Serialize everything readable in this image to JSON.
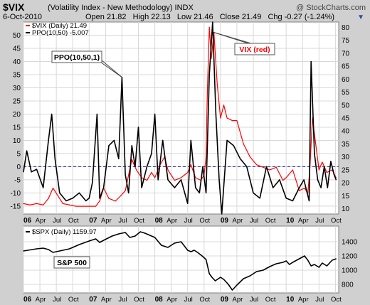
{
  "header": {
    "ticker": "$VIX",
    "description": "(Volatility Index - New Methodology)",
    "exchange": "INDX",
    "watermark": "@ StockCharts.com",
    "date": "6-Oct-2010",
    "quote": {
      "open_label": "Open",
      "open": "21.82",
      "high_label": "High",
      "high": "22.13",
      "low_label": "Low",
      "low": "21.46",
      "close_label": "Close",
      "close": "21.49",
      "chg_label": "Chg",
      "chg": "-0.27 (-1.24%)"
    },
    "chg_arrow": "▼"
  },
  "colors": {
    "vix": "#ff0000",
    "ppo": "#000000",
    "zero_line": "#1f2ca8",
    "panel_bg": "#ffffff",
    "frame_bg": "#d0d0d0"
  },
  "chart_data": [
    {
      "type": "line",
      "legend": [
        {
          "name": "$VIX (Daily) 21.49",
          "color": "#ff0000"
        },
        {
          "name": "PPO(10,50) -5.007",
          "color": "#000000"
        }
      ],
      "legend_placement": "top-left",
      "left_axis": {
        "ticks": [
          -15,
          -10,
          -5,
          0,
          5,
          10,
          15,
          20,
          25,
          30,
          35,
          40,
          45,
          50
        ],
        "labels": [
          "-15",
          "-10",
          "-5",
          "0",
          "5",
          "10",
          "15",
          "20",
          "25",
          "30",
          "35",
          "40",
          "45",
          "50"
        ],
        "range": [
          -18,
          55
        ]
      },
      "right_axis": {
        "ticks": [
          10,
          15,
          20,
          25,
          30,
          35,
          40,
          45,
          50,
          55,
          60,
          65,
          70,
          75,
          80
        ],
        "labels": [
          "10",
          "15",
          "20",
          "25",
          "30",
          "35",
          "40",
          "45",
          "50",
          "55",
          "60",
          "65",
          "70",
          "75",
          "80"
        ],
        "range": [
          8,
          82
        ]
      },
      "x_axis": {
        "labels": [
          "06",
          "Apr",
          "Jul",
          "Oct",
          "07",
          "Apr",
          "Jul",
          "Oct",
          "08",
          "Apr",
          "Jul",
          "Oct",
          "09",
          "Apr",
          "Jul",
          "Oct",
          "10",
          "Apr",
          "Jul",
          "Oct"
        ],
        "range": [
          2006.0,
          2010.8
        ]
      },
      "zero_line": 0,
      "grid": true,
      "series": [
        {
          "name": "$VIX (Daily)",
          "axis": "right",
          "color": "#ff0000",
          "x": [
            2006.0,
            2006.1,
            2006.2,
            2006.3,
            2006.38,
            2006.45,
            2006.5,
            2006.6,
            2006.7,
            2006.8,
            2006.9,
            2007.0,
            2007.1,
            2007.16,
            2007.22,
            2007.3,
            2007.4,
            2007.48,
            2007.55,
            2007.6,
            2007.65,
            2007.72,
            2007.8,
            2007.88,
            2007.95,
            2008.0,
            2008.08,
            2008.15,
            2008.2,
            2008.3,
            2008.4,
            2008.5,
            2008.55,
            2008.62,
            2008.7,
            2008.75,
            2008.78,
            2008.8,
            2008.83,
            2008.86,
            2008.9,
            2008.95,
            2009.0,
            2009.05,
            2009.1,
            2009.18,
            2009.25,
            2009.35,
            2009.45,
            2009.55,
            2009.65,
            2009.75,
            2009.85,
            2009.95,
            2010.0,
            2010.1,
            2010.2,
            2010.28,
            2010.33,
            2010.36,
            2010.4,
            2010.45,
            2010.5,
            2010.55,
            2010.62,
            2010.7,
            2010.76
          ],
          "y": [
            12,
            11.5,
            12,
            11.5,
            14,
            18,
            16,
            12,
            11.5,
            11,
            11,
            11,
            11,
            13,
            18,
            14,
            13,
            15,
            17,
            23,
            29,
            25,
            22,
            21,
            24,
            22,
            27,
            30,
            25,
            21,
            22,
            24,
            27,
            22,
            21,
            23,
            30,
            55,
            80,
            68,
            78,
            58,
            45,
            50,
            45,
            44,
            44,
            35,
            30,
            27,
            26,
            25,
            26,
            21,
            22,
            25,
            17,
            18,
            16,
            25,
            45,
            35,
            25,
            28,
            24,
            25,
            22
          ]
        },
        {
          "name": "PPO(10,50)",
          "axis": "left",
          "color": "#000000",
          "x": [
            2006.0,
            2006.05,
            2006.12,
            2006.2,
            2006.3,
            2006.38,
            2006.43,
            2006.48,
            2006.55,
            2006.65,
            2006.75,
            2006.85,
            2006.95,
            2007.0,
            2007.05,
            2007.12,
            2007.16,
            2007.22,
            2007.3,
            2007.38,
            2007.45,
            2007.5,
            2007.55,
            2007.6,
            2007.65,
            2007.7,
            2007.75,
            2007.8,
            2007.88,
            2007.95,
            2008.0,
            2008.05,
            2008.12,
            2008.2,
            2008.3,
            2008.4,
            2008.5,
            2008.55,
            2008.62,
            2008.68,
            2008.73,
            2008.78,
            2008.83,
            2008.88,
            2008.93,
            2008.98,
            2009.02,
            2009.1,
            2009.2,
            2009.3,
            2009.4,
            2009.5,
            2009.6,
            2009.7,
            2009.8,
            2009.9,
            2010.0,
            2010.1,
            2010.2,
            2010.27,
            2010.32,
            2010.35,
            2010.38,
            2010.43,
            2010.48,
            2010.53,
            2010.58,
            2010.63,
            2010.68,
            2010.73,
            2010.76
          ],
          "y": [
            -2,
            6,
            -2,
            -1,
            -8,
            10,
            20,
            3,
            -10,
            -13,
            -12,
            -10,
            -13,
            -12,
            -6,
            20,
            -12,
            -8,
            8,
            10,
            3,
            34,
            -3,
            -10,
            8,
            0,
            15,
            -8,
            0,
            5,
            20,
            -5,
            10,
            -5,
            -8,
            -5,
            -14,
            10,
            -8,
            -10,
            0,
            -10,
            35,
            55,
            20,
            -5,
            -18,
            10,
            8,
            3,
            0,
            -10,
            -12,
            0,
            -8,
            -5,
            -12,
            -13,
            -8,
            -5,
            -10,
            -13,
            40,
            5,
            -5,
            -8,
            0,
            -8,
            2,
            -3,
            -5
          ]
        }
      ],
      "annotations": [
        {
          "text": "PPO(10,50,1)",
          "target_x": 2007.5,
          "target_y": 34
        },
        {
          "text": "VIX (red)",
          "target_x": 2008.9,
          "target_y": 78
        }
      ]
    },
    {
      "type": "line",
      "legend": [
        {
          "name": "$SPX (Daily) 1159.97",
          "color": "#000000"
        }
      ],
      "legend_placement": "top-left",
      "right_axis": {
        "ticks": [
          800,
          1000,
          1200,
          1400
        ],
        "labels": [
          "800",
          "1000",
          "1200",
          "1400"
        ],
        "range": [
          680,
          1620
        ]
      },
      "x_axis": {
        "labels": [
          "06",
          "Apr",
          "Jul",
          "Oct",
          "07",
          "Apr",
          "Jul",
          "Oct",
          "08",
          "Apr",
          "Jul",
          "Oct",
          "09",
          "Apr",
          "Jul",
          "Oct",
          "10",
          "Apr",
          "Jul",
          "Oct"
        ],
        "range": [
          2006.0,
          2010.8
        ]
      },
      "grid": true,
      "series": [
        {
          "name": "$SPX (Daily)",
          "color": "#000000",
          "x": [
            2006.0,
            2006.1,
            2006.2,
            2006.3,
            2006.38,
            2006.45,
            2006.55,
            2006.7,
            2006.85,
            2007.0,
            2007.1,
            2007.16,
            2007.22,
            2007.35,
            2007.45,
            2007.55,
            2007.62,
            2007.7,
            2007.78,
            2007.85,
            2007.95,
            2008.0,
            2008.1,
            2008.2,
            2008.3,
            2008.4,
            2008.5,
            2008.55,
            2008.6,
            2008.65,
            2008.72,
            2008.78,
            2008.83,
            2008.87,
            2008.92,
            2009.0,
            2009.05,
            2009.12,
            2009.18,
            2009.25,
            2009.35,
            2009.45,
            2009.55,
            2009.65,
            2009.75,
            2009.85,
            2009.95,
            2010.0,
            2010.05,
            2010.1,
            2010.2,
            2010.28,
            2010.33,
            2010.38,
            2010.43,
            2010.5,
            2010.55,
            2010.62,
            2010.7,
            2010.76
          ],
          "y": [
            1270,
            1285,
            1300,
            1310,
            1290,
            1250,
            1270,
            1300,
            1360,
            1410,
            1440,
            1390,
            1420,
            1480,
            1510,
            1530,
            1460,
            1480,
            1540,
            1520,
            1480,
            1460,
            1350,
            1320,
            1380,
            1400,
            1280,
            1260,
            1280,
            1250,
            1200,
            1150,
            950,
            900,
            850,
            900,
            870,
            800,
            720,
            790,
            880,
            920,
            980,
            1000,
            1050,
            1090,
            1110,
            1130,
            1080,
            1110,
            1160,
            1200,
            1140,
            1060,
            1080,
            1040,
            1100,
            1060,
            1140,
            1160
          ]
        }
      ],
      "annotations": [
        {
          "text": "S&P 500"
        }
      ]
    }
  ]
}
